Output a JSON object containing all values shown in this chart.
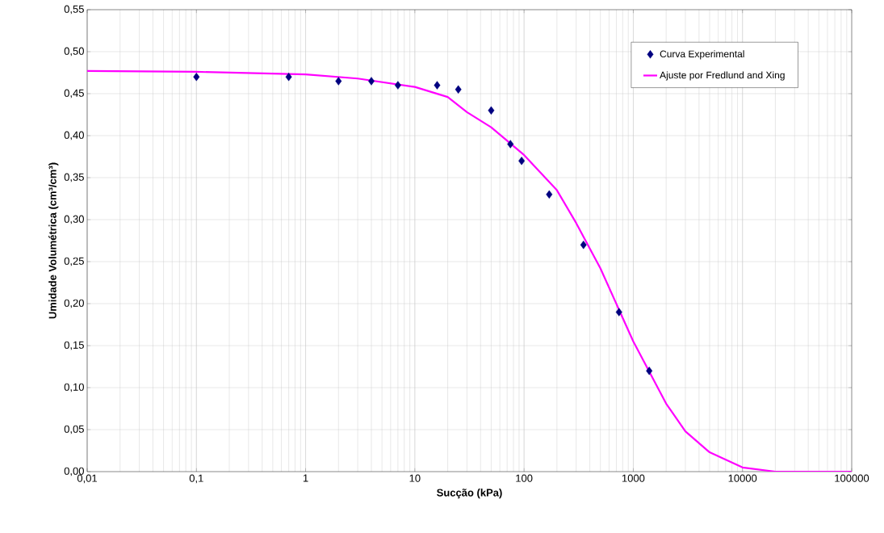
{
  "chart_data": {
    "type": "scatter",
    "xlabel": "Sucção (kPa)",
    "ylabel": "Umidade Volumétrica (cm³/cm³)",
    "log": "x",
    "grid": true,
    "legend": "top right",
    "xlim": [
      0.01,
      100000
    ],
    "ylim": [
      0,
      0.55
    ],
    "xticks": [
      {
        "value": 0.01,
        "label": "0,01"
      },
      {
        "value": 0.1,
        "label": "0,1"
      },
      1,
      10,
      100,
      1000,
      10000,
      100000
    ],
    "yticks": [
      {
        "value": 0,
        "label": "0,00"
      },
      {
        "value": 0.05,
        "label": "0,05"
      },
      {
        "value": 0.1,
        "label": "0,10"
      },
      {
        "value": 0.15,
        "label": "0,15"
      },
      {
        "value": 0.2,
        "label": "0,20"
      },
      {
        "value": 0.25,
        "label": "0,25"
      },
      {
        "value": 0.3,
        "label": "0,30"
      },
      {
        "value": 0.35,
        "label": "0,35"
      },
      {
        "value": 0.4,
        "label": "0,40"
      },
      {
        "value": 0.45,
        "label": "0,45"
      },
      {
        "value": 0.5,
        "label": "0,50"
      },
      {
        "value": 0.55,
        "label": "0,55"
      }
    ],
    "series": [
      {
        "name": "Curva Experimental",
        "marker": "diamond",
        "color": "#000080",
        "x": [
          0.1,
          0.7,
          2,
          4,
          7,
          16,
          25,
          50,
          75,
          95,
          170,
          350,
          740,
          1400
        ],
        "values": [
          0.47,
          0.47,
          0.465,
          0.465,
          0.46,
          0.46,
          0.455,
          0.43,
          0.39,
          0.37,
          0.33,
          0.27,
          0.19,
          0.12
        ]
      },
      {
        "name": "Ajuste por Fredlund and Xing",
        "type": "line",
        "marker": "none",
        "line_style": "solid",
        "color": "#ff00ff",
        "x": [
          0.01,
          0.1,
          1,
          3,
          10,
          20,
          30,
          50,
          100,
          200,
          300,
          500,
          1000,
          2000,
          3000,
          5000,
          10000,
          20000,
          100000
        ],
        "values": [
          0.477,
          0.476,
          0.473,
          0.468,
          0.458,
          0.446,
          0.428,
          0.41,
          0.377,
          0.335,
          0.296,
          0.242,
          0.155,
          0.081,
          0.048,
          0.023,
          0.005,
          0,
          0
        ]
      }
    ]
  }
}
